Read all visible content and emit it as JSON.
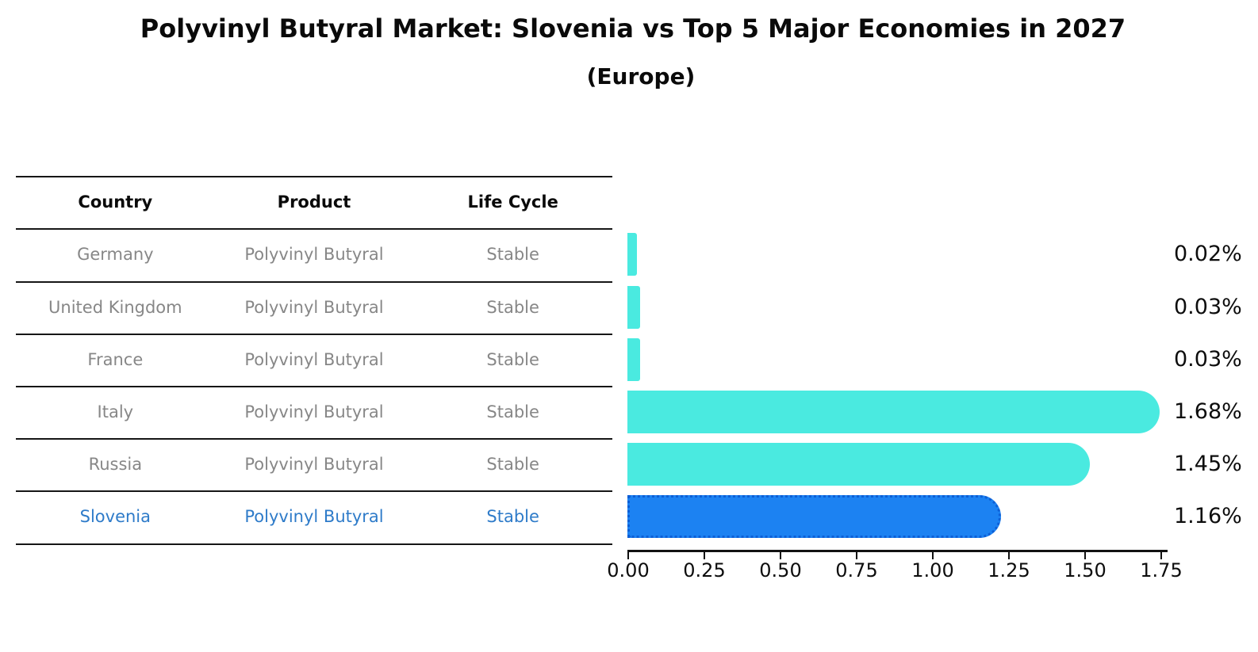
{
  "header": {
    "title": "Polyvinyl Butyral Market: Slovenia vs Top 5 Major Economies in 2027",
    "subtitle": "(Europe)"
  },
  "table": {
    "columns": [
      "Country",
      "Product",
      "Life Cycle"
    ],
    "rows": [
      {
        "country": "Germany",
        "product": "Polyvinyl Butyral",
        "life_cycle": "Stable"
      },
      {
        "country": "United Kingdom",
        "product": "Polyvinyl Butyral",
        "life_cycle": "Stable"
      },
      {
        "country": "France",
        "product": "Polyvinyl Butyral",
        "life_cycle": "Stable"
      },
      {
        "country": "Italy",
        "product": "Polyvinyl Butyral",
        "life_cycle": "Stable"
      },
      {
        "country": "Russia",
        "product": "Polyvinyl Butyral",
        "life_cycle": "Stable"
      },
      {
        "country": "Slovenia",
        "product": "Polyvinyl Butyral",
        "life_cycle": "Stable"
      }
    ]
  },
  "chart_data": {
    "type": "bar",
    "orientation": "horizontal",
    "title": "Polyvinyl Butyral Market: Slovenia vs Top 5 Major Economies in 2027",
    "subtitle": "(Europe)",
    "categories": [
      "Germany",
      "United Kingdom",
      "France",
      "Italy",
      "Russia",
      "Slovenia"
    ],
    "values": [
      0.02,
      0.03,
      0.03,
      1.68,
      1.45,
      1.16
    ],
    "value_labels": [
      "0.02%",
      "0.03%",
      "0.03%",
      "1.68%",
      "1.45%",
      "1.16%"
    ],
    "x_ticks": [
      "0.00",
      "0.25",
      "0.50",
      "0.75",
      "1.00",
      "1.25",
      "1.50",
      "1.75"
    ],
    "xlim": [
      0,
      1.75
    ],
    "grid": false,
    "legend": false,
    "highlight_category": "Slovenia",
    "colors": {
      "bar": "#4AEAE0",
      "highlight": "#1C82F2",
      "highlight_edge": "#0D5FD6",
      "highlight_text": "#2E7BC9",
      "muted_text": "#878787"
    }
  }
}
